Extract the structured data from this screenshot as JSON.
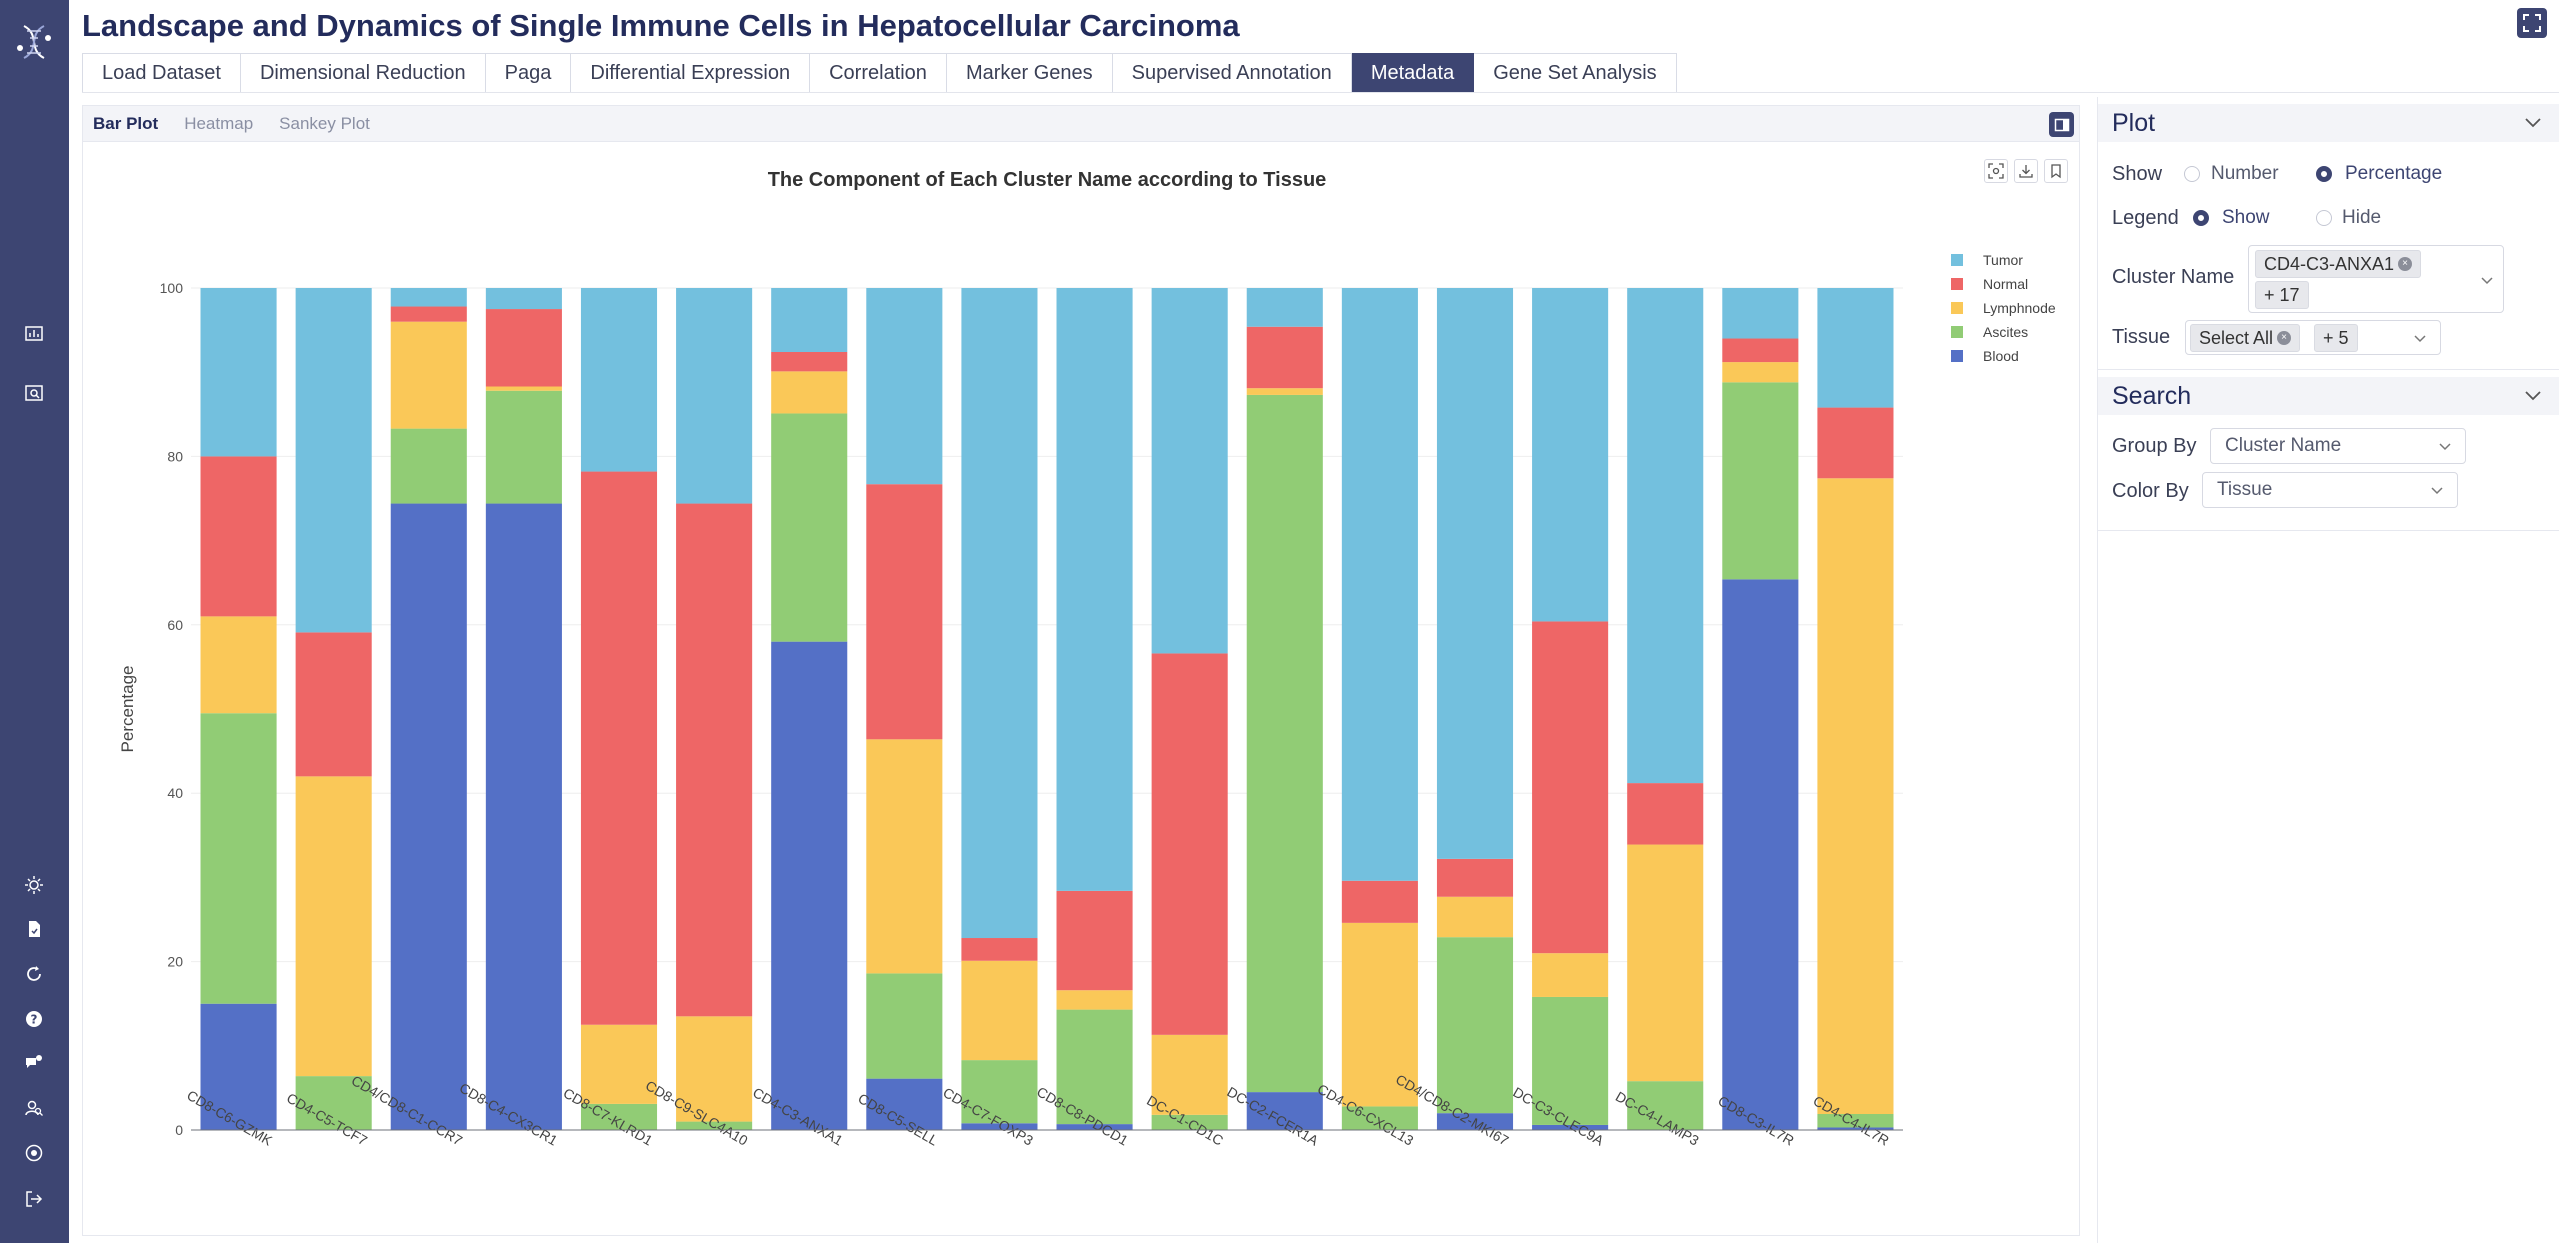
{
  "app": {
    "title": "Landscape and Dynamics of Single Immune Cells in Hepatocellular Carcinoma"
  },
  "colors": {
    "sidebar": "#3d4572",
    "accent": "#3d4572"
  },
  "sidebar": {
    "top_icons": [
      "bar-chart-icon",
      "image-search-icon"
    ],
    "bottom_icons": [
      "sun-icon",
      "document-icon",
      "refresh-icon",
      "help-icon",
      "chat-icon",
      "user-search-icon",
      "history-icon",
      "logout-icon"
    ]
  },
  "main_tabs": [
    {
      "label": "Load Dataset",
      "active": false
    },
    {
      "label": "Dimensional Reduction",
      "active": false
    },
    {
      "label": "Paga",
      "active": false
    },
    {
      "label": "Differential Expression",
      "active": false
    },
    {
      "label": "Correlation",
      "active": false
    },
    {
      "label": "Marker Genes",
      "active": false
    },
    {
      "label": "Supervised Annotation",
      "active": false
    },
    {
      "label": "Metadata",
      "active": true
    },
    {
      "label": "Gene Set Analysis",
      "active": false
    }
  ],
  "sub_tabs": [
    {
      "label": "Bar Plot",
      "active": true
    },
    {
      "label": "Heatmap",
      "active": false
    },
    {
      "label": "Sankey Plot",
      "active": false
    }
  ],
  "plot_panel": {
    "title": "Plot",
    "show_label": "Show",
    "show_options": {
      "number": "Number",
      "percentage": "Percentage"
    },
    "show_selected": "percentage",
    "legend_label": "Legend",
    "legend_options": {
      "show": "Show",
      "hide": "Hide"
    },
    "legend_selected": "show",
    "cluster_label": "Cluster Name",
    "cluster_chip": "CD4-C3-ANXA1",
    "cluster_more": "+ 17",
    "tissue_label": "Tissue",
    "tissue_chip": "Select All",
    "tissue_more": "+ 5"
  },
  "search_panel": {
    "title": "Search",
    "group_by_label": "Group By",
    "group_by_value": "Cluster Name",
    "color_by_label": "Color By",
    "color_by_value": "Tissue"
  },
  "chart_data": {
    "type": "bar",
    "stacked": true,
    "title": "The Component of Each Cluster Name according to Tissue",
    "xlabel": "",
    "ylabel": "Percentage",
    "ylim": [
      0,
      100
    ],
    "yticks": [
      0,
      20,
      40,
      60,
      80,
      100
    ],
    "legend_position": "top-right",
    "categories": [
      "CD8-C6-GZMK",
      "CD4-C5-TCF7",
      "CD4/CD8-C1-CCR7",
      "CD8-C4-CX3CR1",
      "CD8-C7-KLRD1",
      "CD8-C9-SLC4A10",
      "CD4-C3-ANXA1",
      "CD8-C5-SELL",
      "CD4-C7-FOXP3",
      "CD8-C8-PDCD1",
      "DC-C1-CD1C",
      "DC-C2-FCER1A",
      "CD4-C6-CXCL13",
      "CD4/CD8-C2-MKI67",
      "DC-C3-CLEC9A",
      "DC-C4-LAMP3",
      "CD8-C3-IL7R",
      "CD4-C4-IL7R"
    ],
    "series": [
      {
        "name": "Blood",
        "color": "#5470c6",
        "values": [
          15,
          0,
          74.4,
          74.4,
          0,
          0,
          58,
          6.1,
          0.8,
          0.7,
          0,
          4.5,
          0,
          2,
          0.6,
          0,
          65.4,
          0.3
        ]
      },
      {
        "name": "Ascites",
        "color": "#91cc75",
        "values": [
          34.5,
          6.4,
          8.9,
          13.4,
          3.1,
          1,
          27.1,
          12.5,
          7.5,
          13.6,
          1.8,
          82.8,
          2.8,
          20.9,
          15.2,
          5.8,
          23.4,
          1.6
        ]
      },
      {
        "name": "Lymphnode",
        "color": "#fac858",
        "values": [
          11.5,
          35.6,
          12.7,
          0.5,
          9.4,
          12.5,
          5,
          27.8,
          11.8,
          2.3,
          9.5,
          0.8,
          21.8,
          4.8,
          5.2,
          28.1,
          2.4,
          75.5
        ]
      },
      {
        "name": "Normal",
        "color": "#ee6666",
        "values": [
          19,
          17.1,
          1.8,
          9.2,
          65.7,
          60.9,
          2.3,
          30.3,
          2.7,
          11.8,
          45.3,
          7.3,
          5,
          4.5,
          39.4,
          7.3,
          2.8,
          8.4
        ]
      },
      {
        "name": "Tumor",
        "color": "#73c0de",
        "values": [
          20,
          40.9,
          2.2,
          2.5,
          21.8,
          25.6,
          7.6,
          23.3,
          77.2,
          71.6,
          43.4,
          4.6,
          70.4,
          67.8,
          39.6,
          58.8,
          6,
          14.2
        ]
      }
    ],
    "legend_order": [
      "Tumor",
      "Normal",
      "Lymphnode",
      "Ascites",
      "Blood"
    ]
  }
}
